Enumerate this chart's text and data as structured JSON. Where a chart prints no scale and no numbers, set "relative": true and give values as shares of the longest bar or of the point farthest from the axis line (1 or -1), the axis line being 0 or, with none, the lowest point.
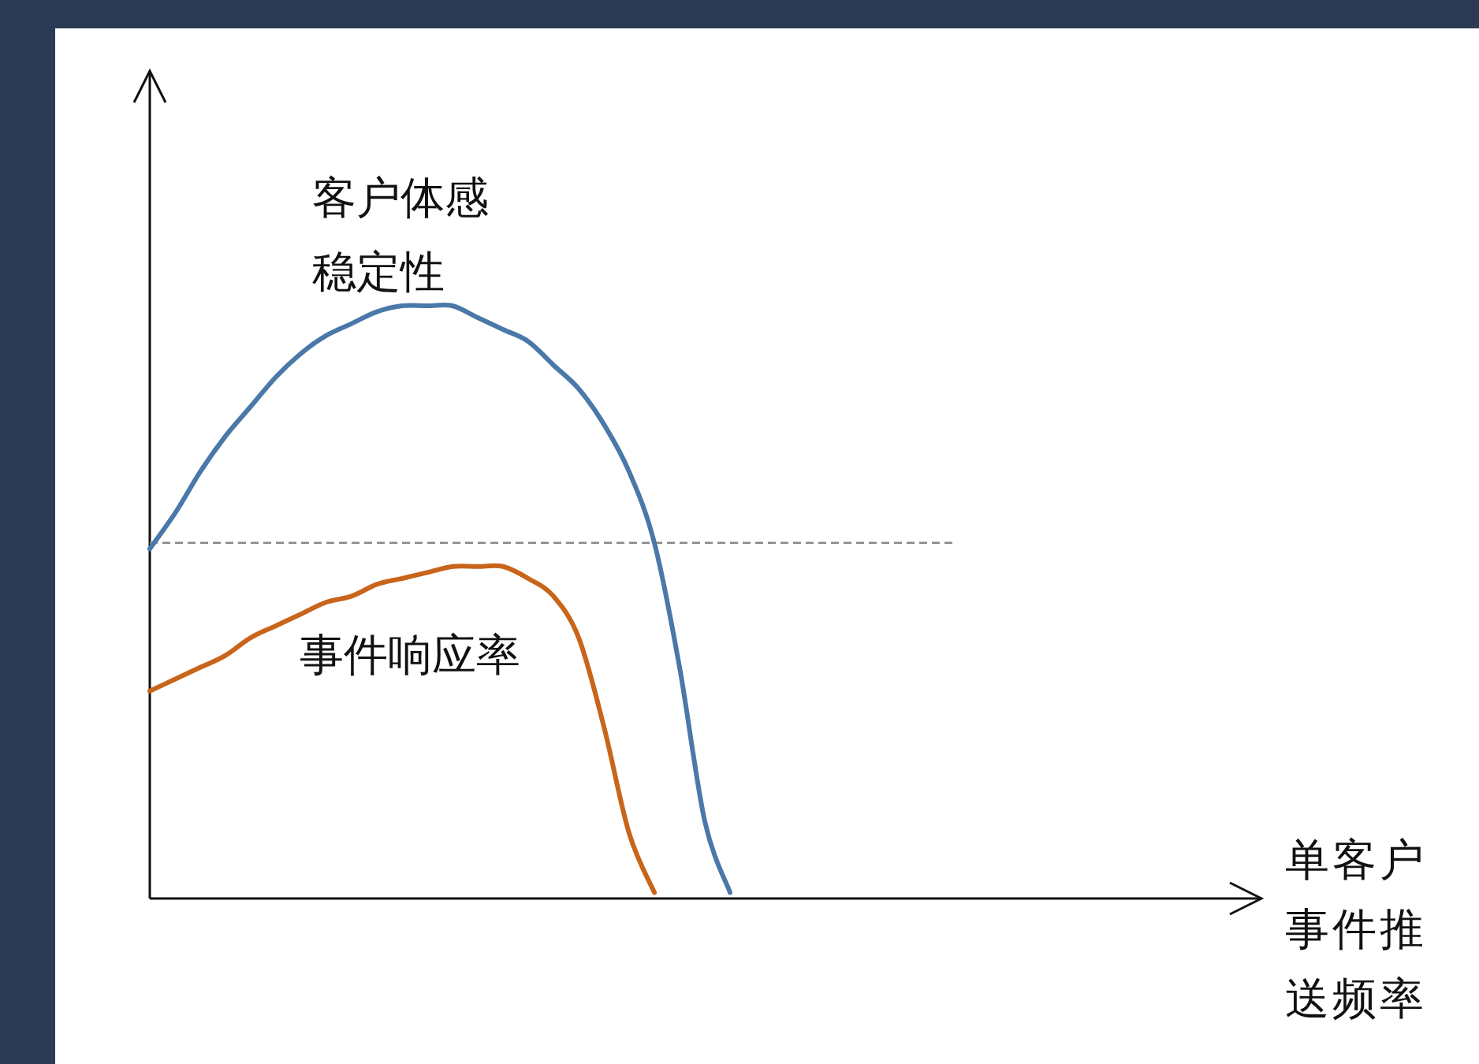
{
  "chart_data": {
    "type": "line",
    "relative": true,
    "annotations": [
      "单客户事件推送频率"
    ],
    "categories": [
      null,
      null,
      null,
      null,
      null,
      null,
      null,
      null,
      null,
      null,
      null,
      null,
      null,
      null,
      null,
      null,
      null,
      null,
      null,
      null,
      null,
      null,
      null,
      null
    ],
    "series": [
      {
        "name": "客户体感稳定性",
        "color": "#4a78a8",
        "values": [
          0.59,
          0.65,
          0.72,
          0.78,
          0.83,
          0.88,
          0.92,
          0.95,
          0.97,
          0.99,
          1.0,
          1.0,
          1.0,
          0.98,
          0.96,
          0.94,
          0.9,
          0.86,
          0.8,
          0.72,
          0.6,
          0.39,
          0.13,
          0.01
        ]
      },
      {
        "name": "事件响应率",
        "color": "#c8651b",
        "values": [
          0.35,
          0.37,
          0.39,
          0.41,
          0.44,
          0.46,
          0.48,
          0.5,
          0.51,
          0.53,
          0.54,
          0.55,
          0.56,
          0.56,
          0.56,
          0.54,
          0.51,
          0.44,
          0.29,
          0.11,
          0.01,
          null,
          null,
          null
        ]
      }
    ],
    "ref_lines": [
      {
        "axis": "y",
        "value": 0.6,
        "color": "#888888",
        "line_style": "dashed"
      }
    ]
  }
}
